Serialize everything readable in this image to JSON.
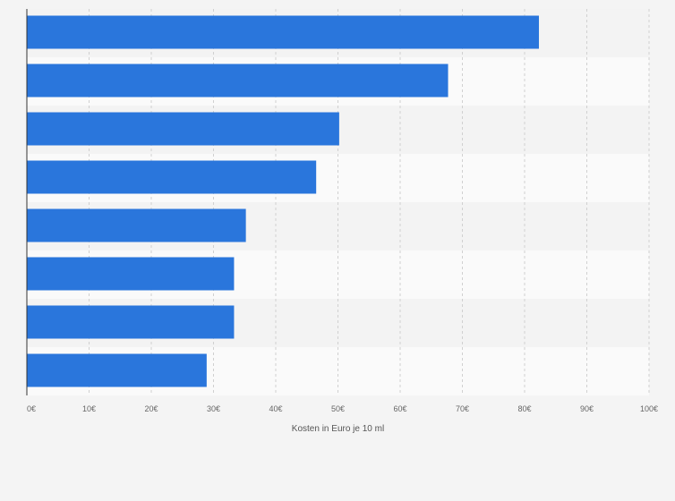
{
  "chart_data": {
    "type": "bar",
    "orientation": "horizontal",
    "title": "",
    "xlabel": "Kosten in Euro je 10 ml",
    "ylabel": "",
    "categories": [
      "",
      "",
      "",
      "",
      "",
      "",
      "",
      ""
    ],
    "values": [
      82.3,
      67.7,
      50.2,
      46.5,
      35.2,
      33.3,
      33.3,
      28.9
    ],
    "xlim": [
      0,
      100
    ],
    "xticks": [
      "0€",
      "10€",
      "20€",
      "30€",
      "40€",
      "50€",
      "60€",
      "70€",
      "80€",
      "90€",
      "100€"
    ],
    "grid": true,
    "bar_color": "#2a76dc",
    "row_colors": [
      "#f3f3f3",
      "#fafafa"
    ]
  }
}
